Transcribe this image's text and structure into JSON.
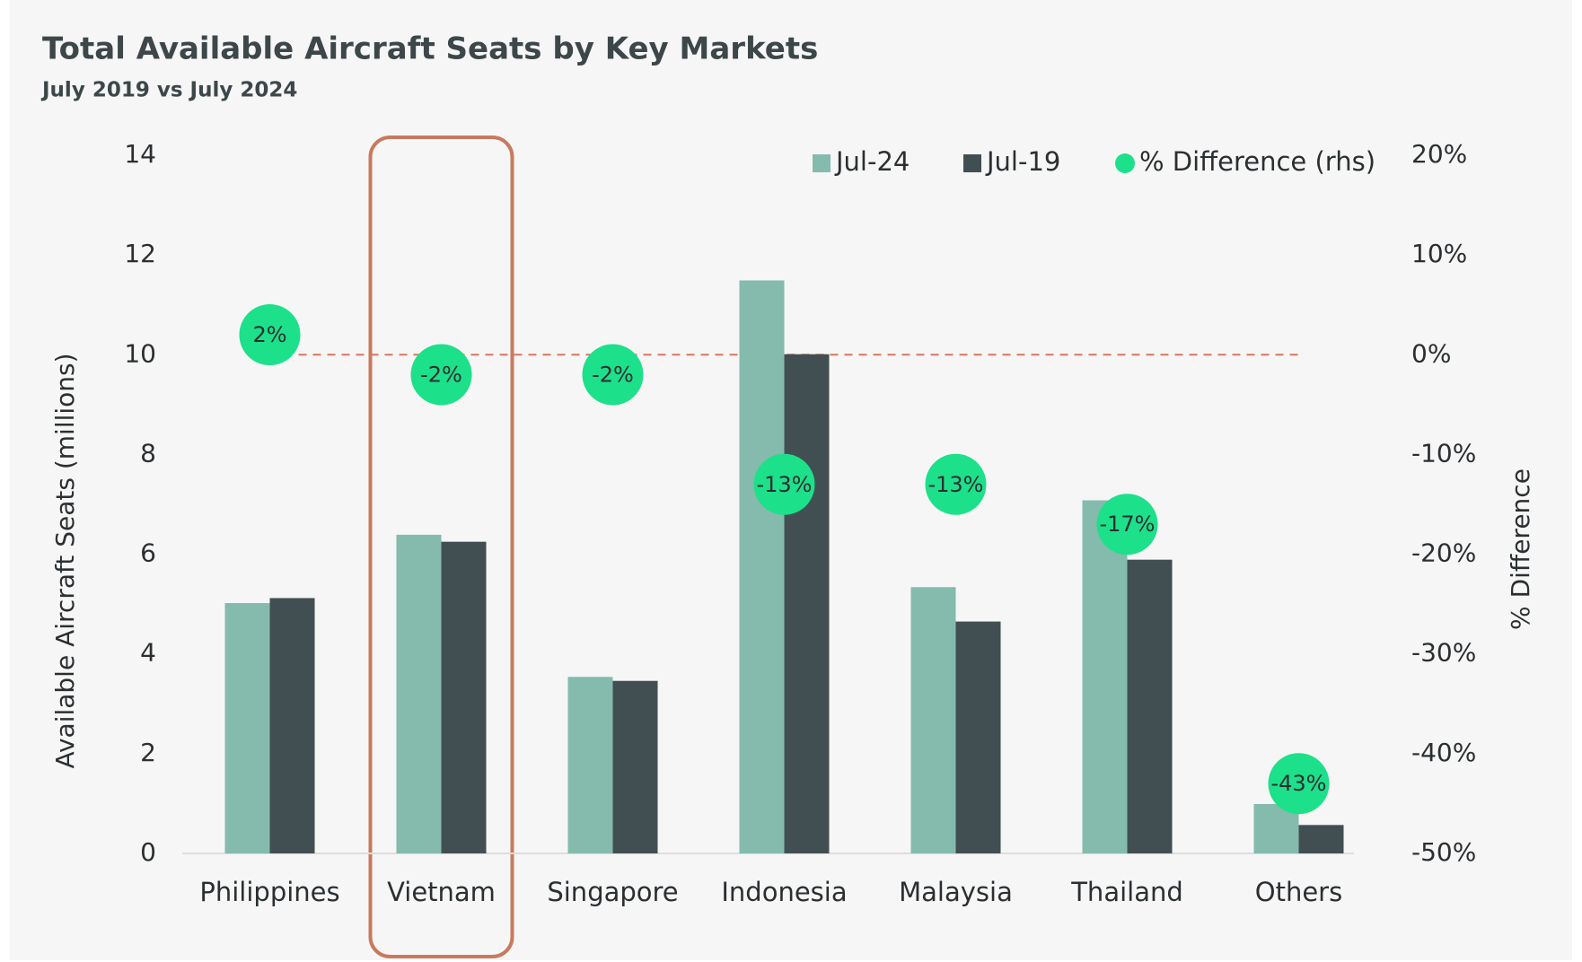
{
  "chart_data": {
    "type": "bar",
    "title": "Total Available Aircraft Seats by Key Markets",
    "subtitle": "July 2019 vs July 2024",
    "y_label": "Available Aircraft Seats (millions)",
    "y2_label": "% Difference",
    "categories": [
      "Philippines",
      "Vietnam",
      "Singapore",
      "Indonesia",
      "Malaysia",
      "Thailand",
      "Others"
    ],
    "series": [
      {
        "name": "Jul-24",
        "color": "#84bbad",
        "values": [
          5.02,
          6.39,
          3.54,
          11.49,
          5.34,
          7.08,
          0.99
        ]
      },
      {
        "name": "Jul-19",
        "color": "#424f52",
        "values": [
          5.12,
          6.25,
          3.46,
          10.01,
          4.65,
          5.89,
          0.57
        ]
      },
      {
        "name": "% Difference (rhs)",
        "color": "#1de08a",
        "type": "scatter",
        "axis": "y2",
        "values": [
          2,
          -2,
          -2,
          -13,
          -13,
          -17,
          -43
        ],
        "value_labels": [
          "2%",
          "-2%",
          "-2%",
          "-13%",
          "-13%",
          "-17%",
          "-43%"
        ]
      }
    ],
    "ylim": [
      0,
      14
    ],
    "yticks": [
      0,
      2,
      4,
      6,
      8,
      10,
      12,
      14
    ],
    "y2lim": [
      -50,
      20
    ],
    "y2ticks": [
      {
        "value": -50,
        "label": "-50%"
      },
      {
        "value": -40,
        "label": "-40%"
      },
      {
        "value": -30,
        "label": "-30%"
      },
      {
        "value": -20,
        "label": "-20%"
      },
      {
        "value": -10,
        "label": "-10%"
      },
      {
        "value": 0,
        "label": "0%"
      },
      {
        "value": 10,
        "label": "10%"
      },
      {
        "value": 20,
        "label": "20%"
      }
    ],
    "zero_line_y2": true,
    "highlight": "Vietnam",
    "legend": "top-right",
    "grid": false
  }
}
